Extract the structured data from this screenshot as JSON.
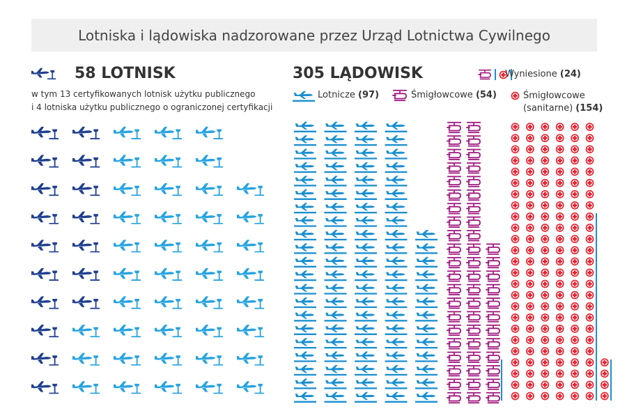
{
  "chart_data": {
    "type": "pictogram",
    "title": "Lotniska i lądowiska nadzorowane przez Urząd Lotnictwa Cywilnego",
    "panels": [
      {
        "total": 58,
        "total_label": "LOTNISK",
        "notes": [
          "w tym 13 certyfikowanych lotnisk użytku publicznego",
          "i 4 lotniska użytku publicznego o ograniczonej certyfikacji"
        ],
        "series": [
          {
            "color": "#1f3f8f",
            "values": [
              17
            ]
          },
          {
            "color": "#27a3e0",
            "values": [
              41
            ]
          }
        ]
      },
      {
        "total": 305,
        "total_label": "LĄDOWISK",
        "series": [
          {
            "name": "Lotnicze",
            "color": "#1a8fd0",
            "values": [
              97
            ],
            "value_labels": [
              "(97)"
            ]
          },
          {
            "name": "Śmigłowcowe",
            "color": "#a0177f",
            "values": [
              54
            ],
            "value_labels": [
              "(54)"
            ]
          },
          {
            "name": "Śmigłowcowe (sanitarne)",
            "color": "#e5202e",
            "values": [
              154
            ],
            "value_labels": [
              "(154)"
            ]
          },
          {
            "name": "Wyniesione",
            "color": "#1a8fd0",
            "values": [
              24
            ],
            "value_labels": [
              "(24)"
            ]
          }
        ]
      }
    ]
  }
}
